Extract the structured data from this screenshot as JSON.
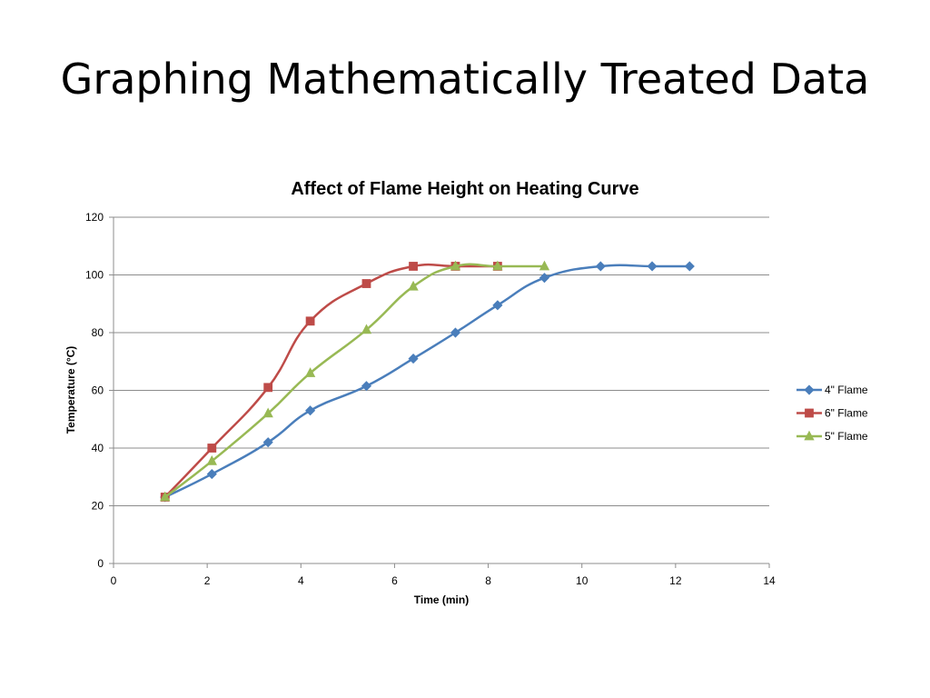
{
  "slide": {
    "title": "Graphing Mathematically Treated Data"
  },
  "chart_data": {
    "type": "line",
    "title": "Affect of Flame Height on Heating Curve",
    "xlabel": "Time (min)",
    "ylabel": "Temperature (°C)",
    "xlim": [
      0,
      14
    ],
    "ylim": [
      0,
      120
    ],
    "xticks": [
      0,
      2,
      4,
      6,
      8,
      10,
      12,
      14
    ],
    "yticks": [
      0,
      20,
      40,
      60,
      80,
      100,
      120
    ],
    "grid": "horizontal",
    "legend_position": "right",
    "series": [
      {
        "name": "4\" Flame",
        "color": "#4a7ebb",
        "marker": "diamond",
        "x": [
          1.1,
          2.1,
          3.3,
          4.2,
          5.4,
          6.4,
          7.3,
          8.2,
          9.2,
          10.4,
          11.5,
          12.3
        ],
        "y": [
          23,
          31,
          42,
          53,
          61.5,
          71,
          80,
          89.5,
          99,
          103,
          103,
          103
        ]
      },
      {
        "name": "6\" Flame",
        "color": "#be4b48",
        "marker": "square",
        "x": [
          1.1,
          2.1,
          3.3,
          4.2,
          5.4,
          6.4,
          7.3,
          8.2
        ],
        "y": [
          23,
          40,
          61,
          84,
          97,
          103,
          103,
          103
        ]
      },
      {
        "name": "5\" Flame",
        "color": "#98b954",
        "marker": "triangle",
        "x": [
          1.1,
          2.1,
          3.3,
          4.2,
          5.4,
          6.4,
          7.3,
          8.2,
          9.2
        ],
        "y": [
          23,
          35.5,
          52,
          66,
          81,
          96,
          103,
          103,
          103
        ]
      }
    ]
  }
}
